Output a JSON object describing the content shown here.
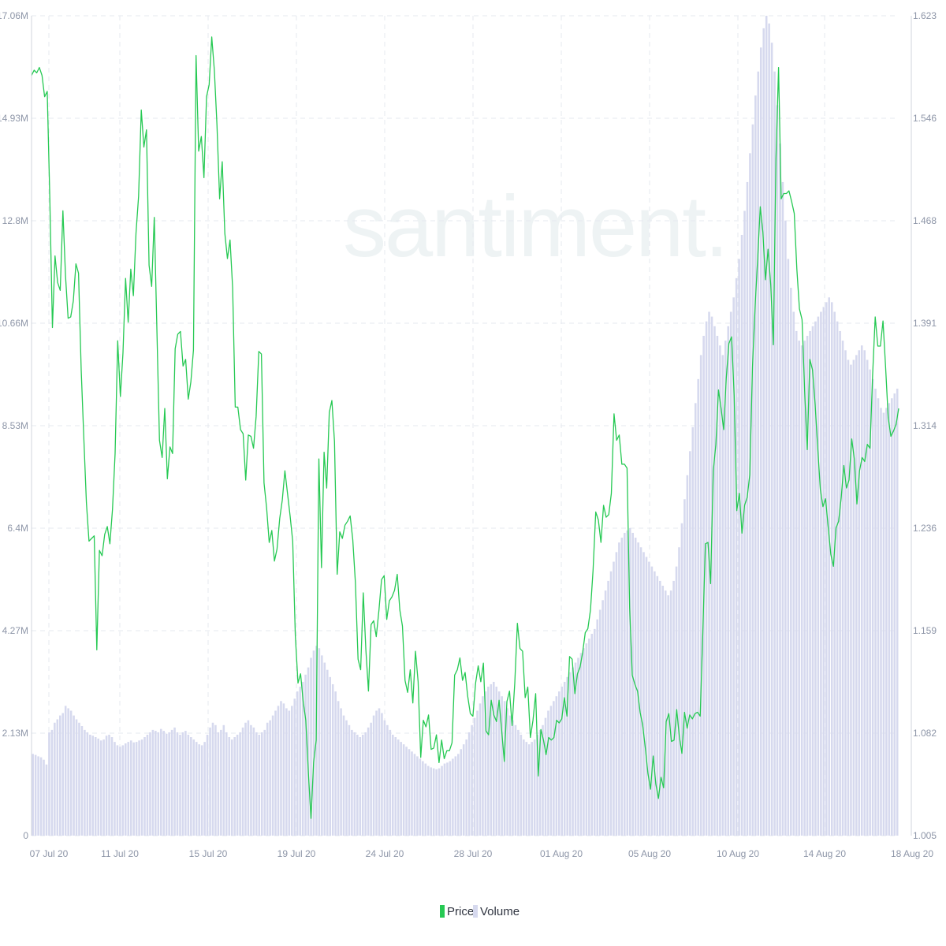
{
  "watermark": "santiment.",
  "legend": {
    "price_label": "Price",
    "volume_label": "Volume"
  },
  "colors": {
    "price": "#26c953",
    "volume": "#d6d9ee",
    "grid": "#e5e8ef",
    "axis_text": "#8e96a8"
  },
  "chart_data": {
    "type": "line",
    "title": "",
    "x_labels": [
      "07 Jul 20",
      "11 Jul 20",
      "15 Jul 20",
      "19 Jul 20",
      "24 Jul 20",
      "28 Jul 20",
      "01 Aug 20",
      "05 Aug 20",
      "10 Aug 20",
      "14 Aug 20",
      "18 Aug 20"
    ],
    "x_range": [
      "2020-07-06",
      "2020-08-18"
    ],
    "y_left_ticks": [
      "0",
      "2.13M",
      "4.27M",
      "6.4M",
      "8.53M",
      "10.66M",
      "12.8M",
      "14.93M",
      "17.06M"
    ],
    "y_right_ticks": [
      "1.005",
      "1.082",
      "1.159",
      "1.236",
      "1.314",
      "1.391",
      "1.468",
      "1.546",
      "1.623"
    ],
    "y_left_range": [
      0,
      17060000
    ],
    "y_right_range": [
      1.005,
      1.623
    ],
    "grid": true,
    "legend_position": "bottom-center",
    "series": [
      {
        "name": "Price",
        "axis": "right",
        "type": "line",
        "values": [
          1.578,
          1.582,
          1.58,
          1.584,
          1.578,
          1.562,
          1.566,
          1.485,
          1.388,
          1.442,
          1.422,
          1.416,
          1.476,
          1.427,
          1.395,
          1.396,
          1.408,
          1.436,
          1.429,
          1.356,
          1.305,
          1.256,
          1.227,
          1.229,
          1.231,
          1.145,
          1.22,
          1.216,
          1.232,
          1.238,
          1.225,
          1.251,
          1.293,
          1.378,
          1.336,
          1.369,
          1.425,
          1.392,
          1.432,
          1.412,
          1.459,
          1.487,
          1.552,
          1.524,
          1.537,
          1.435,
          1.419,
          1.471,
          1.387,
          1.303,
          1.29,
          1.327,
          1.274,
          1.298,
          1.293,
          1.372,
          1.383,
          1.385,
          1.359,
          1.364,
          1.334,
          1.347,
          1.371,
          1.593,
          1.521,
          1.532,
          1.501,
          1.562,
          1.571,
          1.607,
          1.582,
          1.541,
          1.485,
          1.513,
          1.459,
          1.44,
          1.454,
          1.418,
          1.328,
          1.328,
          1.311,
          1.308,
          1.273,
          1.307,
          1.306,
          1.297,
          1.321,
          1.37,
          1.368,
          1.271,
          1.252,
          1.226,
          1.235,
          1.212,
          1.221,
          1.244,
          1.258,
          1.28,
          1.263,
          1.246,
          1.227,
          1.156,
          1.12,
          1.127,
          1.106,
          1.092,
          1.052,
          1.018,
          1.06,
          1.077,
          1.289,
          1.207,
          1.294,
          1.267,
          1.324,
          1.333,
          1.302,
          1.202,
          1.234,
          1.229,
          1.239,
          1.242,
          1.246,
          1.228,
          1.196,
          1.138,
          1.13,
          1.188,
          1.145,
          1.114,
          1.164,
          1.167,
          1.155,
          1.175,
          1.198,
          1.201,
          1.168,
          1.182,
          1.185,
          1.19,
          1.202,
          1.175,
          1.163,
          1.122,
          1.113,
          1.13,
          1.105,
          1.144,
          1.121,
          1.064,
          1.092,
          1.087,
          1.096,
          1.07,
          1.071,
          1.081,
          1.06,
          1.077,
          1.063,
          1.069,
          1.069,
          1.075,
          1.126,
          1.13,
          1.139,
          1.122,
          1.128,
          1.11,
          1.097,
          1.095,
          1.12,
          1.133,
          1.121,
          1.135,
          1.084,
          1.081,
          1.107,
          1.096,
          1.091,
          1.107,
          1.084,
          1.061,
          1.106,
          1.114,
          1.088,
          1.12,
          1.165,
          1.146,
          1.144,
          1.109,
          1.117,
          1.079,
          1.092,
          1.112,
          1.05,
          1.085,
          1.077,
          1.066,
          1.079,
          1.077,
          1.079,
          1.092,
          1.09,
          1.093,
          1.109,
          1.095,
          1.14,
          1.138,
          1.112,
          1.127,
          1.132,
          1.143,
          1.158,
          1.161,
          1.175,
          1.205,
          1.249,
          1.243,
          1.226,
          1.254,
          1.245,
          1.247,
          1.263,
          1.323,
          1.303,
          1.307,
          1.285,
          1.285,
          1.282,
          1.177,
          1.126,
          1.119,
          1.114,
          1.098,
          1.088,
          1.071,
          1.052,
          1.04,
          1.065,
          1.044,
          1.033,
          1.049,
          1.041,
          1.091,
          1.097,
          1.076,
          1.077,
          1.1,
          1.08,
          1.067,
          1.098,
          1.086,
          1.096,
          1.093,
          1.097,
          1.098,
          1.095,
          1.158,
          1.225,
          1.226,
          1.195,
          1.28,
          1.3,
          1.341,
          1.327,
          1.311,
          1.35,
          1.376,
          1.381,
          1.337,
          1.25,
          1.263,
          1.233,
          1.254,
          1.26,
          1.277,
          1.358,
          1.403,
          1.44,
          1.479,
          1.46,
          1.424,
          1.447,
          1.42,
          1.375,
          1.515,
          1.584,
          1.485,
          1.489,
          1.489,
          1.491,
          1.483,
          1.474,
          1.432,
          1.402,
          1.394,
          1.34,
          1.296,
          1.364,
          1.356,
          1.33,
          1.297,
          1.266,
          1.253,
          1.259,
          1.238,
          1.217,
          1.208,
          1.237,
          1.242,
          1.26,
          1.284,
          1.267,
          1.273,
          1.304,
          1.289,
          1.255,
          1.28,
          1.29,
          1.287,
          1.3,
          1.297,
          1.352,
          1.396,
          1.374,
          1.374,
          1.393,
          1.358,
          1.32,
          1.306,
          1.31,
          1.315,
          1.327
        ]
      },
      {
        "name": "Volume",
        "axis": "left",
        "type": "bar",
        "values": [
          1700000,
          1680000,
          1650000,
          1630000,
          1580000,
          1480000,
          2150000,
          2200000,
          2350000,
          2420000,
          2500000,
          2550000,
          2700000,
          2650000,
          2600000,
          2500000,
          2420000,
          2350000,
          2280000,
          2200000,
          2150000,
          2100000,
          2080000,
          2050000,
          2020000,
          1980000,
          2000000,
          2080000,
          2100000,
          2050000,
          1950000,
          1880000,
          1850000,
          1880000,
          1920000,
          1950000,
          1980000,
          1940000,
          1950000,
          1980000,
          2000000,
          2050000,
          2100000,
          2150000,
          2200000,
          2180000,
          2150000,
          2220000,
          2180000,
          2120000,
          2150000,
          2200000,
          2250000,
          2150000,
          2100000,
          2150000,
          2180000,
          2100000,
          2050000,
          2000000,
          1950000,
          1900000,
          1880000,
          1950000,
          2100000,
          2250000,
          2350000,
          2300000,
          2150000,
          2200000,
          2300000,
          2150000,
          2050000,
          2000000,
          2050000,
          2100000,
          2150000,
          2250000,
          2350000,
          2400000,
          2300000,
          2250000,
          2150000,
          2100000,
          2150000,
          2200000,
          2350000,
          2400000,
          2500000,
          2600000,
          2700000,
          2800000,
          2750000,
          2650000,
          2600000,
          2700000,
          2850000,
          3000000,
          3100000,
          3200000,
          3350000,
          3500000,
          3700000,
          3850000,
          3950000,
          3900000,
          3750000,
          3600000,
          3450000,
          3300000,
          3150000,
          3000000,
          2800000,
          2650000,
          2500000,
          2400000,
          2300000,
          2200000,
          2150000,
          2100000,
          2050000,
          2100000,
          2150000,
          2250000,
          2350000,
          2500000,
          2600000,
          2650000,
          2550000,
          2400000,
          2300000,
          2200000,
          2100000,
          2050000,
          2000000,
          1950000,
          1900000,
          1850000,
          1800000,
          1750000,
          1700000,
          1650000,
          1600000,
          1550000,
          1500000,
          1450000,
          1420000,
          1400000,
          1380000,
          1400000,
          1450000,
          1500000,
          1520000,
          1550000,
          1600000,
          1650000,
          1700000,
          1800000,
          1900000,
          2000000,
          2150000,
          2300000,
          2450000,
          2600000,
          2750000,
          2900000,
          3000000,
          3100000,
          3150000,
          3200000,
          3100000,
          3000000,
          2900000,
          2800000,
          2650000,
          2500000,
          2400000,
          2300000,
          2200000,
          2100000,
          2000000,
          1950000,
          1900000,
          1950000,
          2000000,
          2100000,
          2200000,
          2300000,
          2450000,
          2600000,
          2700000,
          2800000,
          2900000,
          3000000,
          3100000,
          3200000,
          3300000,
          3400000,
          3500000,
          3600000,
          3700000,
          3800000,
          3900000,
          4000000,
          4100000,
          4200000,
          4300000,
          4500000,
          4700000,
          4900000,
          5100000,
          5300000,
          5500000,
          5700000,
          5900000,
          6100000,
          6200000,
          6300000,
          6350000,
          6400000,
          6300000,
          6200000,
          6100000,
          6000000,
          5900000,
          5800000,
          5700000,
          5600000,
          5500000,
          5400000,
          5300000,
          5200000,
          5100000,
          5000000,
          5100000,
          5300000,
          5600000,
          6000000,
          6500000,
          7000000,
          7500000,
          8000000,
          8500000,
          9000000,
          9500000,
          10000000,
          10400000,
          10700000,
          10900000,
          10800000,
          10600000,
          10400000,
          10200000,
          10000000,
          10300000,
          10600000,
          10900000,
          11200000,
          11600000,
          12000000,
          12500000,
          13000000,
          13600000,
          14200000,
          14800000,
          15400000,
          15900000,
          16400000,
          16800000,
          17060000,
          16900000,
          16500000,
          15900000,
          15200000,
          14400000,
          13600000,
          12800000,
          12000000,
          11400000,
          10900000,
          10500000,
          10300000,
          10200000,
          10300000,
          10400000,
          10500000,
          10600000,
          10700000,
          10800000,
          10900000,
          11000000,
          11100000,
          11200000,
          11100000,
          10900000,
          10700000,
          10500000,
          10300000,
          10100000,
          9900000,
          9800000,
          9900000,
          10000000,
          10100000,
          10200000,
          10100000,
          9900000,
          9700000,
          9500000,
          9300000,
          9100000,
          8900000,
          8800000,
          8900000,
          9000000,
          9100000,
          9200000,
          9300000
        ]
      }
    ]
  }
}
